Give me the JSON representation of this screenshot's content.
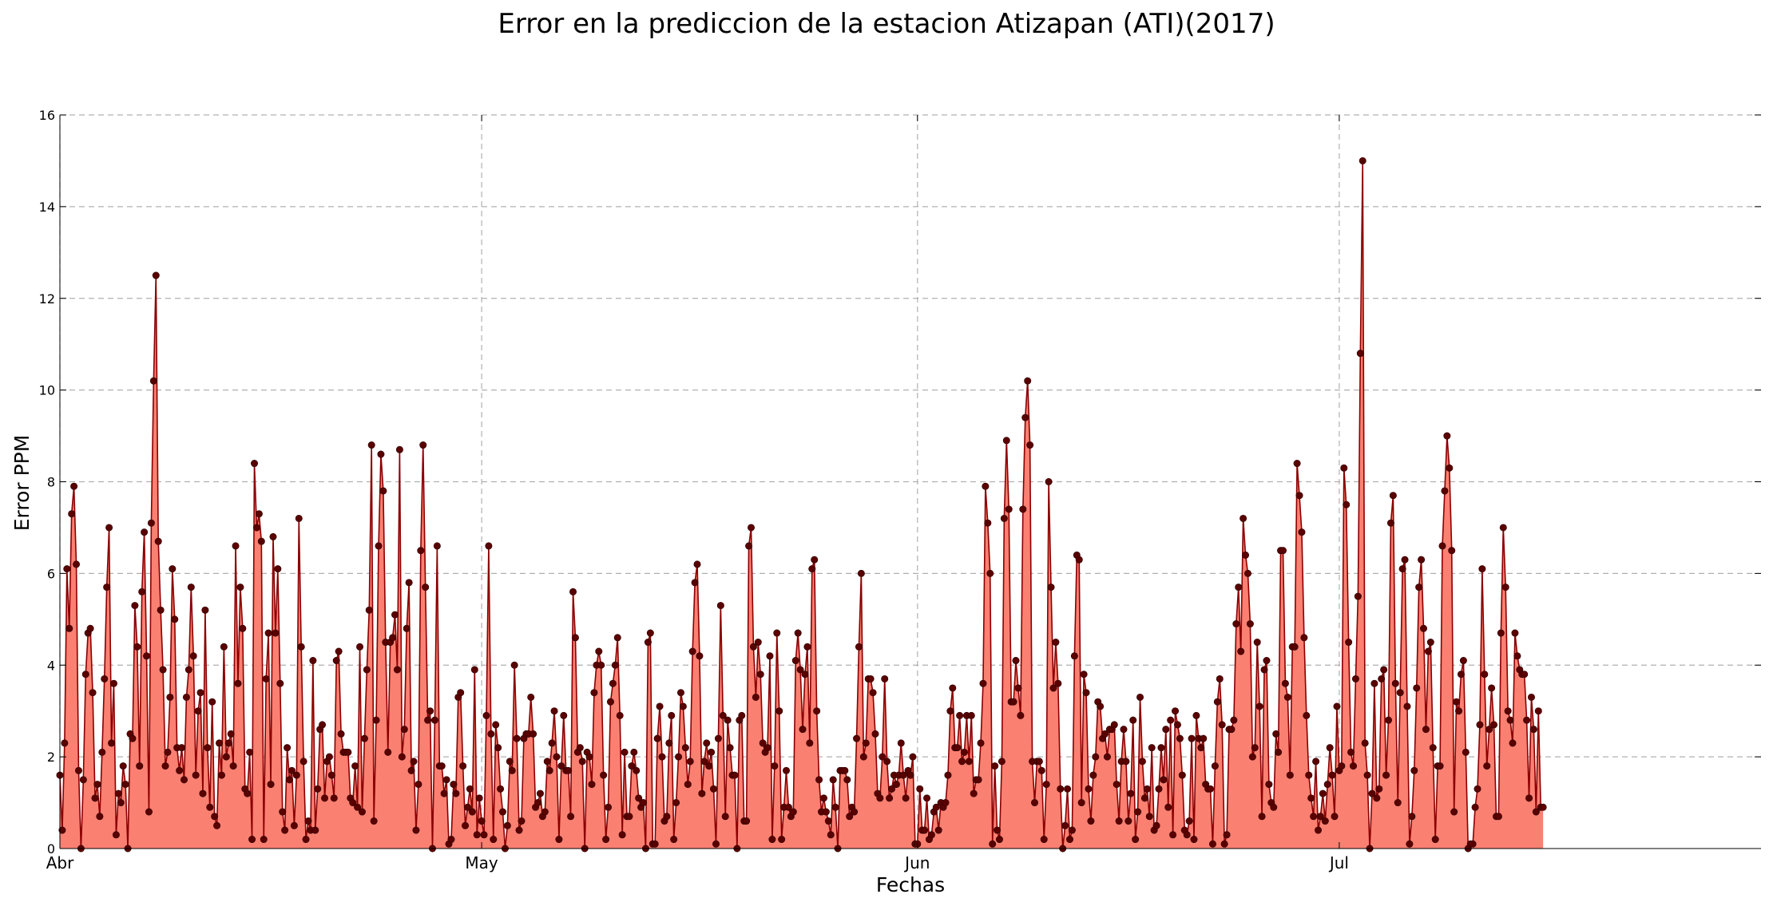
{
  "chart_data": {
    "type": "area",
    "title": "Error en la prediccion de la estacion Atizapan (ATI)(2017)",
    "xlabel": "Fechas",
    "ylabel": "Error PPM",
    "ylim": [
      0,
      16
    ],
    "yticks": [
      "0",
      "2",
      "4",
      "6",
      "8",
      "10",
      "12",
      "14",
      "16"
    ],
    "grid": true,
    "xticks": [
      {
        "label": "Abr",
        "date": "2017-04-01"
      },
      {
        "label": "May",
        "date": "2017-05-01"
      },
      {
        "label": "Jun",
        "date": "2017-06-01"
      },
      {
        "label": "Jul",
        "date": "2017-07-01"
      }
    ],
    "x_range": [
      "2017-04-01",
      "2017-07-31"
    ],
    "series": [
      {
        "start": "2017-04-01",
        "step_hours": 4,
        "values": [
          1.6,
          0.4,
          2.3,
          6.1,
          4.8,
          7.3,
          7.9,
          6.2,
          1.7,
          0.0,
          1.5,
          3.8,
          4.7,
          4.8,
          3.4,
          1.1,
          1.4,
          0.7,
          2.1,
          3.7,
          5.7,
          7.0,
          2.3,
          3.6,
          0.3,
          1.2,
          1.0,
          1.8,
          1.4,
          0.0,
          2.5,
          2.4,
          5.3,
          4.4,
          1.8,
          5.6,
          6.9,
          4.2,
          0.8,
          7.1,
          10.2,
          12.5,
          6.7,
          5.2,
          3.9,
          1.8,
          2.1,
          3.3,
          6.1,
          5.0,
          2.2,
          1.7,
          2.2,
          1.5,
          3.3,
          3.9,
          5.7,
          4.2,
          1.6,
          3.0,
          3.4,
          1.2,
          5.2,
          2.2,
          0.9,
          3.2,
          0.7,
          0.5,
          2.3,
          1.6,
          4.4,
          2.0,
          2.3,
          2.5,
          1.8,
          6.6,
          3.6,
          5.7,
          4.8,
          1.3,
          1.2,
          2.1,
          0.2,
          8.4,
          7.0,
          7.3,
          6.7,
          0.2,
          3.7,
          4.7,
          1.4,
          6.8,
          4.7,
          6.1,
          3.6,
          0.8,
          0.4,
          2.2,
          1.5,
          1.7,
          0.5,
          1.6,
          7.2,
          4.4,
          1.9,
          0.2,
          0.6,
          0.4,
          4.1,
          0.4,
          1.3,
          2.6,
          2.7,
          1.1,
          1.9,
          2.0,
          1.6,
          1.1,
          4.1,
          4.3,
          2.5,
          2.1,
          2.1,
          2.1,
          1.1,
          1.0,
          1.8,
          0.9,
          4.4,
          0.8,
          2.4,
          3.9,
          5.2,
          8.8,
          0.6,
          2.8,
          6.6,
          8.6,
          7.8,
          4.5,
          2.1,
          4.5,
          4.6,
          5.1,
          3.9,
          8.7,
          2.0,
          2.6,
          4.8,
          5.8,
          1.7,
          1.9,
          0.4,
          1.4,
          6.5,
          8.8,
          5.7,
          2.8,
          3.0,
          0.0,
          2.8,
          6.6,
          1.8,
          1.8,
          1.2,
          1.5,
          0.1,
          0.2,
          1.4,
          1.2,
          3.3,
          3.4,
          1.8,
          0.5,
          0.9,
          1.3,
          0.8,
          3.9,
          0.3,
          1.1,
          0.6,
          0.3,
          2.9,
          6.6,
          2.5,
          0.2,
          2.7,
          2.2,
          1.3,
          0.8,
          0.0,
          0.5,
          1.9,
          1.7,
          4.0,
          2.4,
          0.4,
          0.6,
          2.4,
          2.5,
          2.5,
          3.3,
          2.5,
          0.9,
          1.0,
          1.2,
          0.7,
          0.8,
          1.9,
          1.7,
          2.3,
          3.0,
          2.0,
          0.2,
          1.8,
          2.9,
          1.7,
          1.7,
          0.7,
          5.6,
          4.6,
          2.1,
          2.2,
          1.9,
          0.0,
          2.1,
          2.0,
          1.4,
          3.4,
          4.0,
          4.3,
          4.0,
          1.6,
          0.2,
          0.9,
          3.2,
          3.6,
          4.0,
          4.6,
          2.9,
          0.3,
          2.1,
          0.7,
          0.7,
          1.8,
          2.1,
          1.7,
          1.1,
          0.9,
          1.0,
          0.0,
          4.5,
          4.7,
          0.1,
          0.1,
          2.4,
          3.1,
          2.0,
          0.6,
          0.7,
          2.3,
          2.9,
          0.2,
          1.0,
          2.0,
          3.4,
          3.1,
          2.2,
          1.4,
          1.9,
          4.3,
          5.8,
          6.2,
          4.2,
          1.2,
          1.9,
          2.3,
          1.8,
          2.1,
          1.3,
          0.1,
          2.4,
          5.3,
          2.9,
          0.7,
          2.8,
          2.2,
          1.6,
          1.6,
          0.0,
          2.8,
          2.9,
          0.6,
          0.6,
          6.6,
          7.0,
          4.4,
          3.3,
          4.5,
          3.8,
          2.3,
          2.1,
          2.2,
          4.2,
          0.2,
          1.8,
          4.7,
          3.0,
          0.2,
          0.9,
          1.7,
          0.9,
          0.7,
          0.8,
          4.1,
          4.7,
          3.9,
          2.6,
          3.8,
          4.4,
          2.3,
          6.1,
          6.3,
          3.0,
          1.5,
          0.8,
          1.1,
          0.8,
          0.6,
          0.3,
          1.5,
          0.9,
          0.0,
          1.7,
          1.7,
          1.7,
          1.5,
          0.7,
          0.9,
          0.8,
          2.4,
          4.4,
          6.0,
          2.0,
          2.3,
          3.7,
          3.7,
          3.4,
          2.5,
          1.2,
          1.1,
          2.0,
          3.7,
          1.9,
          1.1,
          1.3,
          1.6,
          1.4,
          1.6,
          2.3,
          1.6,
          1.1,
          1.7,
          1.6,
          2.0,
          0.1,
          0.1,
          1.3,
          0.4,
          0.4,
          1.1,
          0.2,
          0.3,
          0.8,
          0.9,
          0.4,
          1.0,
          0.9,
          1.0,
          1.6,
          3.0,
          3.5,
          2.2,
          2.2,
          2.9,
          1.9,
          2.1,
          2.9,
          1.9,
          2.9,
          1.2,
          1.5,
          1.5,
          2.3,
          3.6,
          7.9,
          7.1,
          6.0,
          0.1,
          1.8,
          0.4,
          0.2,
          1.9,
          7.2,
          8.9,
          7.4,
          3.2,
          3.2,
          4.1,
          3.5,
          2.9,
          7.4,
          9.4,
          10.2,
          8.8,
          1.9,
          1.0,
          1.9,
          1.9,
          1.7,
          0.2,
          1.4,
          8.0,
          5.7,
          3.5,
          4.5,
          3.6,
          1.3,
          0.0,
          0.5,
          1.3,
          0.2,
          0.4,
          4.2,
          6.4,
          6.3,
          1.0,
          3.8,
          3.4,
          1.3,
          0.6,
          1.6,
          2.0,
          3.2,
          3.1,
          2.4,
          2.5,
          2.0,
          2.6,
          2.6,
          2.7,
          1.4,
          0.6,
          1.9,
          2.6,
          1.9,
          0.6,
          1.2,
          2.8,
          0.2,
          0.8,
          3.3,
          1.9,
          1.1,
          1.3,
          0.7,
          2.2,
          0.4,
          0.5,
          1.3,
          2.2,
          1.5,
          2.6,
          0.9,
          2.8,
          0.3,
          3.0,
          2.7,
          2.4,
          1.6,
          0.4,
          0.3,
          0.6,
          2.4,
          0.2,
          2.9,
          2.4,
          2.2,
          2.4,
          1.4,
          1.3,
          1.3,
          0.1,
          1.8,
          3.2,
          3.7,
          2.7,
          0.1,
          0.3,
          2.6,
          2.6,
          2.8,
          4.9,
          5.7,
          4.3,
          7.2,
          6.4,
          6.0,
          4.9,
          2.0,
          2.2,
          4.5,
          3.1,
          0.7,
          3.9,
          4.1,
          1.4,
          1.0,
          0.9,
          2.5,
          2.1,
          6.5,
          6.5,
          3.6,
          3.3,
          1.6,
          4.4,
          4.4,
          8.4,
          7.7,
          6.9,
          4.6,
          2.9,
          1.6,
          1.1,
          0.7,
          1.9,
          0.4,
          0.7,
          1.2,
          0.6,
          1.4,
          2.2,
          1.6,
          0.7,
          3.1,
          1.7,
          1.8,
          8.3,
          7.5,
          4.5,
          2.1,
          1.8,
          3.7,
          5.5,
          10.8,
          15.0,
          2.3,
          1.6,
          0.0,
          1.2,
          3.6,
          1.1,
          1.3,
          3.7,
          3.9,
          1.6,
          2.8,
          7.1,
          7.7,
          3.6,
          1.0,
          3.4,
          6.1,
          6.3,
          3.1,
          0.1,
          0.7,
          1.7,
          3.5,
          5.7,
          6.3,
          4.8,
          2.6,
          4.3,
          4.5,
          2.2,
          0.2,
          1.8,
          1.8,
          6.6,
          7.8,
          9.0,
          8.3,
          6.5,
          0.8,
          3.2,
          3.0,
          3.8,
          4.1,
          2.1,
          0.0,
          0.1,
          0.1,
          0.9,
          1.3,
          2.7,
          6.1,
          3.8,
          1.8,
          2.6,
          3.5,
          2.7,
          0.7,
          0.7,
          4.7,
          7.0,
          5.7,
          3.0,
          2.8,
          2.3,
          4.7,
          4.2,
          3.9,
          3.8,
          3.8,
          2.8,
          1.1,
          3.3,
          2.6,
          0.8,
          3.0,
          0.9,
          0.9
        ]
      }
    ],
    "colors": {
      "fill": "#fa8072",
      "line": "#8b0000",
      "marker": "#5a0000"
    }
  }
}
